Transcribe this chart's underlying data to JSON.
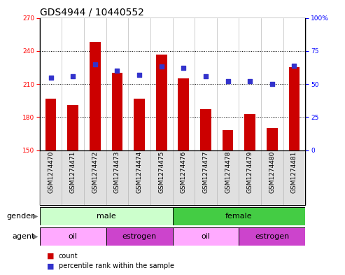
{
  "title": "GDS4944 / 10440552",
  "samples": [
    "GSM1274470",
    "GSM1274471",
    "GSM1274472",
    "GSM1274473",
    "GSM1274474",
    "GSM1274475",
    "GSM1274476",
    "GSM1274477",
    "GSM1274478",
    "GSM1274479",
    "GSM1274480",
    "GSM1274481"
  ],
  "counts": [
    197,
    191,
    248,
    220,
    197,
    237,
    215,
    187,
    168,
    183,
    170,
    225
  ],
  "percentiles": [
    55,
    56,
    65,
    60,
    57,
    63,
    62,
    56,
    52,
    52,
    50,
    64
  ],
  "ylim_left": [
    150,
    270
  ],
  "ylim_right": [
    0,
    100
  ],
  "yticks_left": [
    150,
    180,
    210,
    240,
    270
  ],
  "yticks_right": [
    0,
    25,
    50,
    75,
    100
  ],
  "bar_color": "#cc0000",
  "dot_color": "#3333cc",
  "bar_width": 0.5,
  "gender_groups": [
    {
      "label": "male",
      "start": 0,
      "end": 6,
      "color": "#ccffcc"
    },
    {
      "label": "female",
      "start": 6,
      "end": 12,
      "color": "#44cc44"
    }
  ],
  "agent_groups": [
    {
      "label": "oil",
      "start": 0,
      "end": 3,
      "color": "#ffaaff"
    },
    {
      "label": "estrogen",
      "start": 3,
      "end": 6,
      "color": "#cc44cc"
    },
    {
      "label": "oil",
      "start": 6,
      "end": 9,
      "color": "#ffaaff"
    },
    {
      "label": "estrogen",
      "start": 9,
      "end": 12,
      "color": "#cc44cc"
    }
  ],
  "legend_count_color": "#cc0000",
  "legend_dot_color": "#3333cc",
  "title_fontsize": 10,
  "tick_fontsize": 6.5,
  "label_fontsize": 8,
  "row_label_fontsize": 8,
  "right_tick_label": [
    "0",
    "25",
    "50",
    "75",
    "100%"
  ]
}
